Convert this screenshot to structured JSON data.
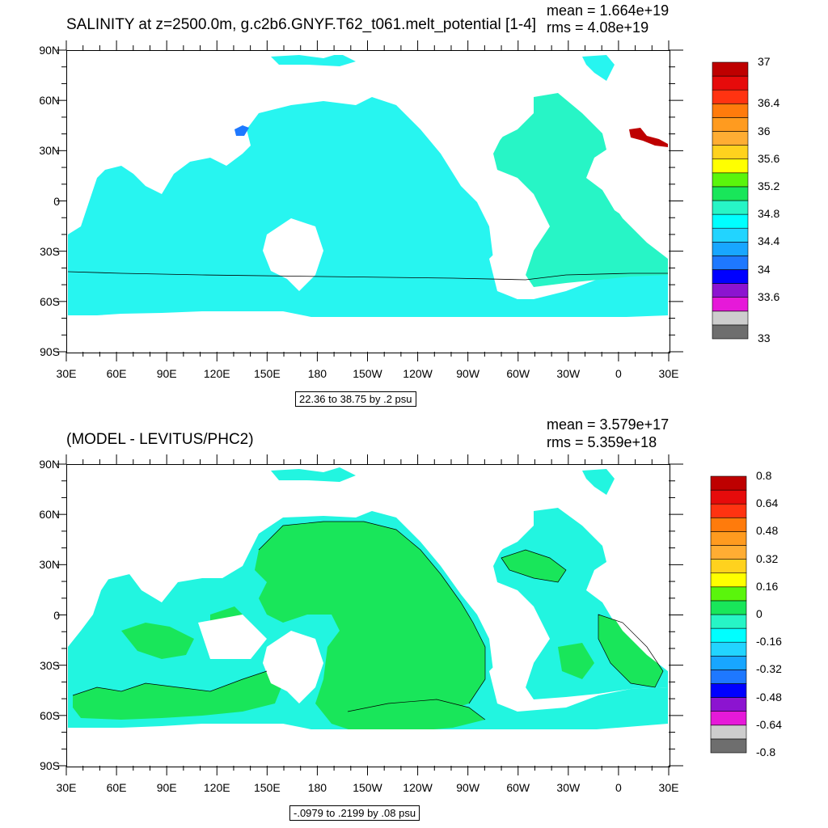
{
  "chart_data": [
    {
      "type": "heatmap",
      "title": "SALINITY at z=2500.0m, g.c2b6.GNYF.T62_t061.melt_potential [1-4]",
      "mean_text": "mean = 1.664e+19",
      "rms_text": "rms = 4.08e+19",
      "xticks": [
        "30E",
        "60E",
        "90E",
        "120E",
        "150E",
        "180",
        "150W",
        "120W",
        "90W",
        "60W",
        "30W",
        "0",
        "30E"
      ],
      "yticks": [
        "90N",
        "60N",
        "30N",
        "0",
        "30S",
        "60S",
        "90S"
      ],
      "range_text": "22.36 to 38.75 by .2 psu",
      "colorbar": {
        "colors": [
          "#6e6e6e",
          "#cdcdcd",
          "#e619d9",
          "#8c14d0",
          "#0000ff",
          "#1e78ff",
          "#18a6ff",
          "#22d4ff",
          "#00ffff",
          "#27f5c6",
          "#19e65a",
          "#5af50c",
          "#ffff00",
          "#ffd21e",
          "#ffad33",
          "#ff9b1f",
          "#ff7b0c",
          "#ff3311",
          "#e60b0b",
          "#be0000"
        ],
        "labels": [
          {
            "text": "37",
            "value": 37
          },
          {
            "text": "36.4",
            "value": 36.4
          },
          {
            "text": "36",
            "value": 36
          },
          {
            "text": "35.6",
            "value": 35.6
          },
          {
            "text": "35.2",
            "value": 35.2
          },
          {
            "text": "34.8",
            "value": 34.8
          },
          {
            "text": "34.4",
            "value": 34.4
          },
          {
            "text": "34",
            "value": 34
          },
          {
            "text": "33.6",
            "value": 33.6
          },
          {
            "text": "33",
            "value": 33
          }
        ],
        "vmin": 33,
        "vmax": 37
      }
    },
    {
      "type": "heatmap",
      "title": "(MODEL - LEVITUS/PHC2)",
      "mean_text": "mean = 3.579e+17",
      "rms_text": "rms = 5.359e+18",
      "xticks": [
        "30E",
        "60E",
        "90E",
        "120E",
        "150E",
        "180",
        "150W",
        "120W",
        "90W",
        "60W",
        "30W",
        "0",
        "30E"
      ],
      "yticks": [
        "90N",
        "60N",
        "30N",
        "0",
        "30S",
        "60S",
        "90S"
      ],
      "range_text": "-.0979 to .2199 by .08 psu",
      "colorbar": {
        "colors": [
          "#6e6e6e",
          "#cdcdcd",
          "#e619d9",
          "#8c14d0",
          "#0000ff",
          "#1e78ff",
          "#18a6ff",
          "#22d4ff",
          "#00ffff",
          "#27f5c6",
          "#19e65a",
          "#5af50c",
          "#ffff00",
          "#ffd21e",
          "#ffad33",
          "#ff9b1f",
          "#ff7b0c",
          "#ff3311",
          "#e60b0b",
          "#be0000"
        ],
        "labels": [
          {
            "text": "0.8",
            "value": 0.8
          },
          {
            "text": "0.64",
            "value": 0.64
          },
          {
            "text": "0.48",
            "value": 0.48
          },
          {
            "text": "0.32",
            "value": 0.32
          },
          {
            "text": "0.16",
            "value": 0.16
          },
          {
            "text": "0",
            "value": 0
          },
          {
            "text": "-0.16",
            "value": -0.16
          },
          {
            "text": "-0.32",
            "value": -0.32
          },
          {
            "text": "-0.48",
            "value": -0.48
          },
          {
            "text": "-0.64",
            "value": -0.64
          },
          {
            "text": "-0.8",
            "value": -0.8
          }
        ],
        "vmin": -0.8,
        "vmax": 0.8
      }
    }
  ],
  "colors": {
    "ocean_top": "#27f5f0",
    "atlantic_top": "#27f5c6",
    "diff_green": "#19e65a",
    "diff_cyan": "#22f5e0"
  }
}
